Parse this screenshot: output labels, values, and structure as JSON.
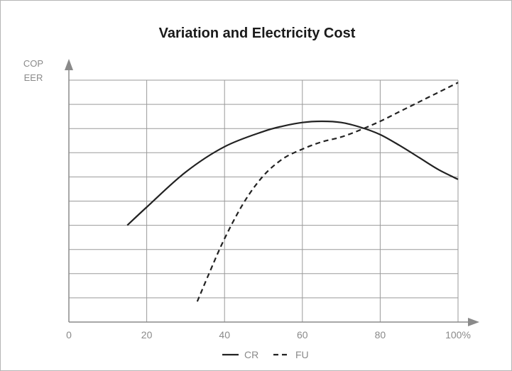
{
  "chart_data": {
    "type": "line",
    "title": "Variation and Electricity Cost",
    "ylabel_lines": [
      "COP",
      "EER"
    ],
    "xlabel": "",
    "x_tick_labels": [
      "0",
      "20",
      "40",
      "60",
      "80",
      "100%"
    ],
    "xlim": [
      0,
      100
    ],
    "ylim": [
      0,
      10
    ],
    "grid": true,
    "legend_position": "bottom-center",
    "series": [
      {
        "name": "CR",
        "style": "solid",
        "color": "#222222",
        "points": [
          [
            15,
            4.0
          ],
          [
            20,
            4.75
          ],
          [
            30,
            6.2
          ],
          [
            40,
            7.25
          ],
          [
            50,
            7.88
          ],
          [
            55,
            8.1
          ],
          [
            60,
            8.25
          ],
          [
            65,
            8.3
          ],
          [
            70,
            8.25
          ],
          [
            75,
            8.05
          ],
          [
            80,
            7.75
          ],
          [
            85,
            7.3
          ],
          [
            90,
            6.8
          ],
          [
            95,
            6.3
          ],
          [
            100,
            5.9
          ]
        ]
      },
      {
        "name": "FU",
        "style": "dashed",
        "color": "#222222",
        "points": [
          [
            33,
            0.85
          ],
          [
            36,
            2.0
          ],
          [
            40,
            3.45
          ],
          [
            45,
            4.95
          ],
          [
            50,
            6.05
          ],
          [
            55,
            6.75
          ],
          [
            60,
            7.15
          ],
          [
            65,
            7.45
          ],
          [
            70,
            7.65
          ],
          [
            75,
            7.95
          ],
          [
            80,
            8.3
          ],
          [
            85,
            8.7
          ],
          [
            90,
            9.1
          ],
          [
            95,
            9.5
          ],
          [
            100,
            9.9
          ]
        ]
      }
    ]
  }
}
